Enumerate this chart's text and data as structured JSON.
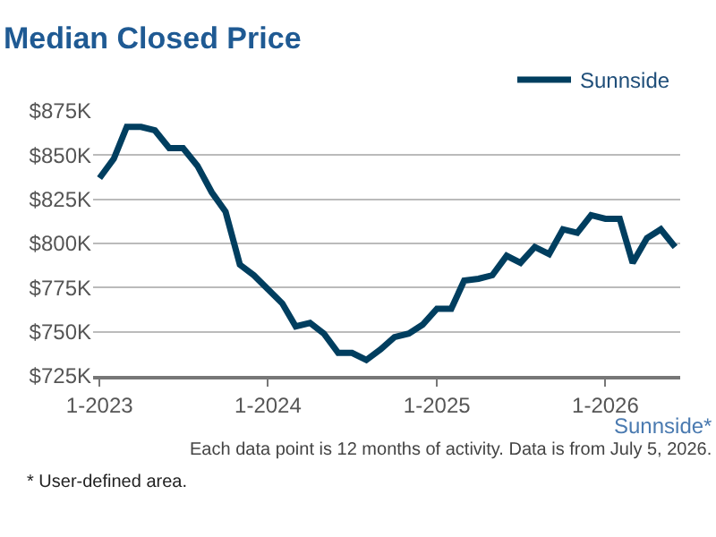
{
  "chart_data": {
    "type": "line",
    "title": "Median Closed Price",
    "x": [
      "2023-01",
      "2023-02",
      "2023-03",
      "2023-04",
      "2023-05",
      "2023-06",
      "2023-07",
      "2023-08",
      "2023-09",
      "2023-10",
      "2023-11",
      "2023-12",
      "2024-01",
      "2024-02",
      "2024-03",
      "2024-04",
      "2024-05",
      "2024-06",
      "2024-07",
      "2024-08",
      "2024-09",
      "2024-10",
      "2024-11",
      "2024-12",
      "2025-01",
      "2025-02",
      "2025-03",
      "2025-04",
      "2025-05",
      "2025-06",
      "2025-07",
      "2025-08",
      "2025-09",
      "2025-10",
      "2025-11",
      "2025-12",
      "2026-01",
      "2026-02",
      "2026-03",
      "2026-04",
      "2026-05",
      "2026-06"
    ],
    "series": [
      {
        "name": "Sunnside",
        "color": "#003e5f",
        "values": [
          837,
          848,
          866,
          866,
          864,
          854,
          854,
          844,
          829,
          818,
          788,
          782,
          774,
          766,
          753,
          755,
          749,
          738,
          738,
          734,
          740,
          747,
          749,
          754,
          763,
          763,
          779,
          780,
          782,
          793,
          789,
          798,
          794,
          808,
          806,
          816,
          814,
          814,
          789,
          803,
          808,
          798
        ]
      }
    ],
    "ylim": [
      725,
      875
    ],
    "yticks": [
      {
        "value": 725,
        "label": "$725K"
      },
      {
        "value": 750,
        "label": "$750K"
      },
      {
        "value": 775,
        "label": "$775K"
      },
      {
        "value": 800,
        "label": "$800K"
      },
      {
        "value": 825,
        "label": "$825K"
      },
      {
        "value": 850,
        "label": "$850K"
      },
      {
        "value": 875,
        "label": "$875K"
      }
    ],
    "xlim": [
      "2022-12-18",
      "2026-06-12"
    ],
    "xticks": [
      {
        "value": "2023-01",
        "label": "1-2023"
      },
      {
        "value": "2024-01",
        "label": "1-2024"
      },
      {
        "value": "2025-01",
        "label": "1-2025"
      },
      {
        "value": "2026-01",
        "label": "1-2026"
      }
    ],
    "grid": "y",
    "legend": "top right",
    "marker": "none",
    "line_style": "solid",
    "annotations": [
      "Sunnside*",
      "Each data point is 12 months of activity. Data is from July 5, 2026.",
      "* User-defined area."
    ]
  }
}
